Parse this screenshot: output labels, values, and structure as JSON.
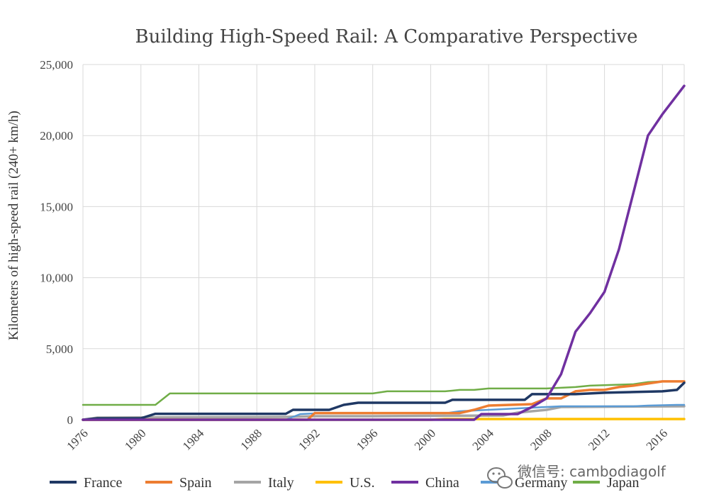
{
  "chart_data": {
    "type": "line",
    "title": "Building High-Speed Rail: A Comparative Perspective",
    "ylabel": "Kilometers of high-speed rail (240+ km/h)",
    "xlabel": "",
    "xlim": [
      1976,
      2017.5
    ],
    "ylim": [
      0,
      25000
    ],
    "x_ticks": [
      1976,
      1980,
      1984,
      1988,
      1992,
      1996,
      2000,
      2004,
      2008,
      2012,
      2016
    ],
    "y_ticks": [
      0,
      5000,
      10000,
      15000,
      20000,
      25000
    ],
    "y_tick_labels": [
      "0",
      "5,000",
      "10,000",
      "15,000",
      "20,000",
      "25,000"
    ],
    "grid": true,
    "legend_position": "bottom",
    "series": [
      {
        "name": "France",
        "color": "#1f3864",
        "points": [
          [
            1976,
            0
          ],
          [
            1977,
            100
          ],
          [
            1980,
            100
          ],
          [
            1981,
            420
          ],
          [
            1989,
            420
          ],
          [
            1990,
            420
          ],
          [
            1990.5,
            700
          ],
          [
            1992,
            700
          ],
          [
            1993,
            700
          ],
          [
            1994,
            1050
          ],
          [
            1995,
            1200
          ],
          [
            2001,
            1200
          ],
          [
            2001.5,
            1400
          ],
          [
            2006.5,
            1400
          ],
          [
            2007,
            1800
          ],
          [
            2010,
            1800
          ],
          [
            2012,
            1900
          ],
          [
            2014,
            1950
          ],
          [
            2016,
            2000
          ],
          [
            2017,
            2100
          ],
          [
            2017.5,
            2600
          ]
        ]
      },
      {
        "name": "Spain",
        "color": "#ed7d31",
        "points": [
          [
            1976,
            0
          ],
          [
            1991.5,
            0
          ],
          [
            1992,
            471
          ],
          [
            2002,
            471
          ],
          [
            2003,
            700
          ],
          [
            2004,
            1000
          ],
          [
            2007,
            1100
          ],
          [
            2008,
            1500
          ],
          [
            2009,
            1500
          ],
          [
            2010,
            2000
          ],
          [
            2011,
            2100
          ],
          [
            2012,
            2100
          ],
          [
            2013,
            2300
          ],
          [
            2014,
            2400
          ],
          [
            2016,
            2700
          ],
          [
            2017.5,
            2700
          ]
        ]
      },
      {
        "name": "Italy",
        "color": "#a5a5a5",
        "points": [
          [
            1976,
            0
          ],
          [
            1977,
            150
          ],
          [
            1990,
            200
          ],
          [
            1992,
            250
          ],
          [
            1996,
            250
          ],
          [
            2005,
            300
          ],
          [
            2006,
            500
          ],
          [
            2008,
            700
          ],
          [
            2009,
            900
          ],
          [
            2012,
            920
          ],
          [
            2017.5,
            950
          ]
        ]
      },
      {
        "name": "U.S.",
        "color": "#ffc000",
        "points": [
          [
            1976,
            0
          ],
          [
            2000,
            0
          ],
          [
            2001,
            50
          ],
          [
            2017.5,
            50
          ]
        ]
      },
      {
        "name": "China",
        "color": "#7030a0",
        "points": [
          [
            1976,
            0
          ],
          [
            2003,
            0
          ],
          [
            2003.5,
            400
          ],
          [
            2006,
            400
          ],
          [
            2007,
            900
          ],
          [
            2008,
            1500
          ],
          [
            2009,
            3200
          ],
          [
            2010,
            6200
          ],
          [
            2011,
            7500
          ],
          [
            2012,
            9000
          ],
          [
            2013,
            12000
          ],
          [
            2014,
            16000
          ],
          [
            2015,
            20000
          ],
          [
            2016,
            21500
          ],
          [
            2017.5,
            23500
          ]
        ]
      },
      {
        "name": "Germany",
        "color": "#5b9bd5",
        "points": [
          [
            1976,
            0
          ],
          [
            1990,
            0
          ],
          [
            1991,
            400
          ],
          [
            1992,
            450
          ],
          [
            2001,
            450
          ],
          [
            2002,
            600
          ],
          [
            2006,
            800
          ],
          [
            2008,
            900
          ],
          [
            2009,
            950
          ],
          [
            2014,
            950
          ],
          [
            2015,
            1000
          ],
          [
            2017,
            1050
          ],
          [
            2017.5,
            1050
          ]
        ]
      },
      {
        "name": "Japan",
        "color": "#70ad47",
        "points": [
          [
            1976,
            1050
          ],
          [
            1981,
            1050
          ],
          [
            1982,
            1850
          ],
          [
            1996,
            1850
          ],
          [
            1997,
            2000
          ],
          [
            2001,
            2000
          ],
          [
            2002,
            2100
          ],
          [
            2003,
            2100
          ],
          [
            2004,
            2200
          ],
          [
            2008,
            2200
          ],
          [
            2010,
            2300
          ],
          [
            2011,
            2400
          ],
          [
            2014,
            2500
          ],
          [
            2015,
            2650
          ],
          [
            2016,
            2700
          ],
          [
            2017.5,
            2700
          ]
        ]
      }
    ]
  },
  "watermark": {
    "icon": "wechat-icon",
    "text": "微信号: cambodiagolf"
  }
}
